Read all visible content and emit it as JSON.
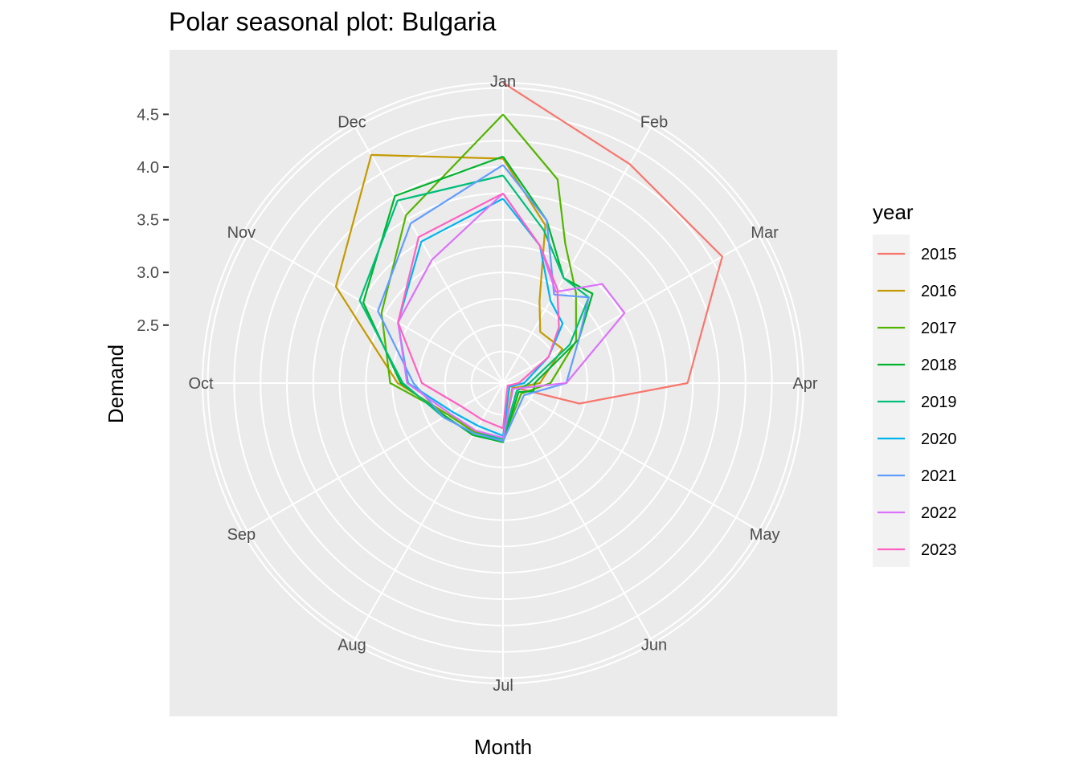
{
  "chart_data": {
    "type": "line",
    "coord": "polar",
    "title": "Polar seasonal plot: Bulgaria",
    "xlabel": "Month",
    "ylabel": "Demand",
    "months": [
      "Jan",
      "Feb",
      "Mar",
      "Apr",
      "May",
      "Jun",
      "Jul",
      "Aug",
      "Sep",
      "Oct",
      "Nov",
      "Dec"
    ],
    "y_ticks": [
      2.5,
      3.0,
      3.5,
      4.0,
      4.5
    ],
    "y_ticks_labels": [
      "2.5",
      "3.0",
      "3.5",
      "4.0",
      "4.5"
    ],
    "ylim": [
      1.95,
      4.8
    ],
    "grid": true,
    "legend": {
      "title": "year",
      "position": "right"
    },
    "series": [
      {
        "name": "2015",
        "color": "#F8766D",
        "values": [
          [
            0,
            4.8
          ],
          [
            1,
            4.35
          ],
          [
            2,
            4.35
          ],
          [
            3,
            3.7
          ],
          [
            3.5,
            2.7
          ],
          [
            4,
            2.0
          ]
        ]
      },
      {
        "name": "2016",
        "color": "#C49A00",
        "values": [
          [
            0,
            4.08
          ],
          [
            0.5,
            3.5
          ],
          [
            0.8,
            2.8
          ],
          [
            1.2,
            2.55
          ],
          [
            2,
            2.6
          ],
          [
            3,
            2.3
          ],
          [
            4,
            2.05
          ],
          [
            6,
            2.48
          ],
          [
            7,
            2.48
          ],
          [
            8,
            2.55
          ],
          [
            9,
            2.95
          ],
          [
            10,
            3.78
          ],
          [
            11,
            4.45
          ],
          [
            12,
            4.08
          ]
        ]
      },
      {
        "name": "2017",
        "color": "#53B400",
        "values": [
          [
            0,
            4.5
          ],
          [
            0.5,
            3.95
          ],
          [
            0.8,
            3.4
          ],
          [
            1.3,
            3.05
          ],
          [
            2,
            2.75
          ],
          [
            3,
            2.4
          ],
          [
            4,
            2.15
          ],
          [
            6,
            2.48
          ],
          [
            7,
            2.49
          ],
          [
            8,
            2.55
          ],
          [
            9,
            3.02
          ],
          [
            10,
            3.28
          ],
          [
            11,
            3.79
          ],
          [
            12,
            4.5
          ]
        ]
      },
      {
        "name": "2018",
        "color": "#00B42E",
        "values": [
          [
            0,
            4.1
          ],
          [
            0.5,
            3.55
          ],
          [
            1,
            3.1
          ],
          [
            1.5,
            3.15
          ],
          [
            2,
            2.78
          ],
          [
            3,
            2.25
          ],
          [
            3.5,
            2.25
          ],
          [
            4,
            2.12
          ],
          [
            6,
            2.51
          ],
          [
            7,
            2.52
          ],
          [
            8,
            2.58
          ],
          [
            9,
            2.92
          ],
          [
            10,
            3.48
          ],
          [
            11,
            4.0
          ],
          [
            12,
            4.1
          ]
        ]
      },
      {
        "name": "2019",
        "color": "#00BE7A",
        "values": [
          [
            0,
            3.92
          ],
          [
            0.5,
            3.45
          ],
          [
            1,
            3.1
          ],
          [
            1.5,
            3.1
          ],
          [
            2,
            2.68
          ],
          [
            3,
            2.2
          ],
          [
            4,
            2.1
          ],
          [
            6,
            2.48
          ],
          [
            7,
            2.5
          ],
          [
            8,
            2.6
          ],
          [
            9,
            2.9
          ],
          [
            10,
            3.52
          ],
          [
            11,
            3.95
          ],
          [
            12,
            3.92
          ]
        ]
      },
      {
        "name": "2020",
        "color": "#00B4EF",
        "values": [
          [
            0,
            3.7
          ],
          [
            0.5,
            3.3
          ],
          [
            1,
            2.85
          ],
          [
            1.5,
            2.75
          ],
          [
            2,
            2.45
          ],
          [
            3,
            2.15
          ],
          [
            4,
            2.02
          ],
          [
            6,
            2.45
          ],
          [
            7,
            2.42
          ],
          [
            8,
            2.5
          ],
          [
            9,
            2.85
          ],
          [
            10,
            3.1
          ],
          [
            11,
            3.5
          ],
          [
            12,
            3.7
          ]
        ]
      },
      {
        "name": "2021",
        "color": "#619CFF",
        "values": [
          [
            0,
            4.02
          ],
          [
            0.5,
            3.55
          ],
          [
            1,
            2.92
          ],
          [
            1.5,
            3.1
          ],
          [
            2,
            2.78
          ],
          [
            3,
            2.55
          ],
          [
            4,
            2.18
          ],
          [
            6,
            2.5
          ],
          [
            7,
            2.5
          ],
          [
            8,
            2.6
          ],
          [
            9,
            2.8
          ],
          [
            10,
            3.32
          ],
          [
            11,
            3.7
          ],
          [
            12,
            4.02
          ]
        ]
      },
      {
        "name": "2022",
        "color": "#DB72FB",
        "values": [
          [
            0,
            3.75
          ],
          [
            0.5,
            3.3
          ],
          [
            1,
            2.95
          ],
          [
            1.5,
            3.28
          ],
          [
            2,
            3.28
          ],
          [
            3,
            2.55
          ],
          [
            4,
            2.06
          ],
          [
            6,
            2.47
          ],
          [
            7,
            2.47
          ],
          [
            8,
            2.53
          ],
          [
            9,
            2.86
          ],
          [
            10,
            3.1
          ],
          [
            11,
            3.3
          ],
          [
            12,
            3.75
          ]
        ]
      },
      {
        "name": "2023",
        "color": "#FF61C3",
        "values": [
          [
            0,
            3.75
          ],
          [
            0.5,
            3.3
          ],
          [
            1,
            2.98
          ],
          [
            1.5,
            2.7
          ],
          [
            2,
            2.45
          ],
          [
            3,
            2.1
          ],
          [
            4,
            2.0
          ],
          [
            6,
            2.38
          ],
          [
            7,
            2.35
          ],
          [
            8,
            2.4
          ],
          [
            9,
            2.72
          ],
          [
            10,
            3.1
          ],
          [
            11,
            3.55
          ],
          [
            12,
            3.75
          ]
        ]
      }
    ]
  }
}
